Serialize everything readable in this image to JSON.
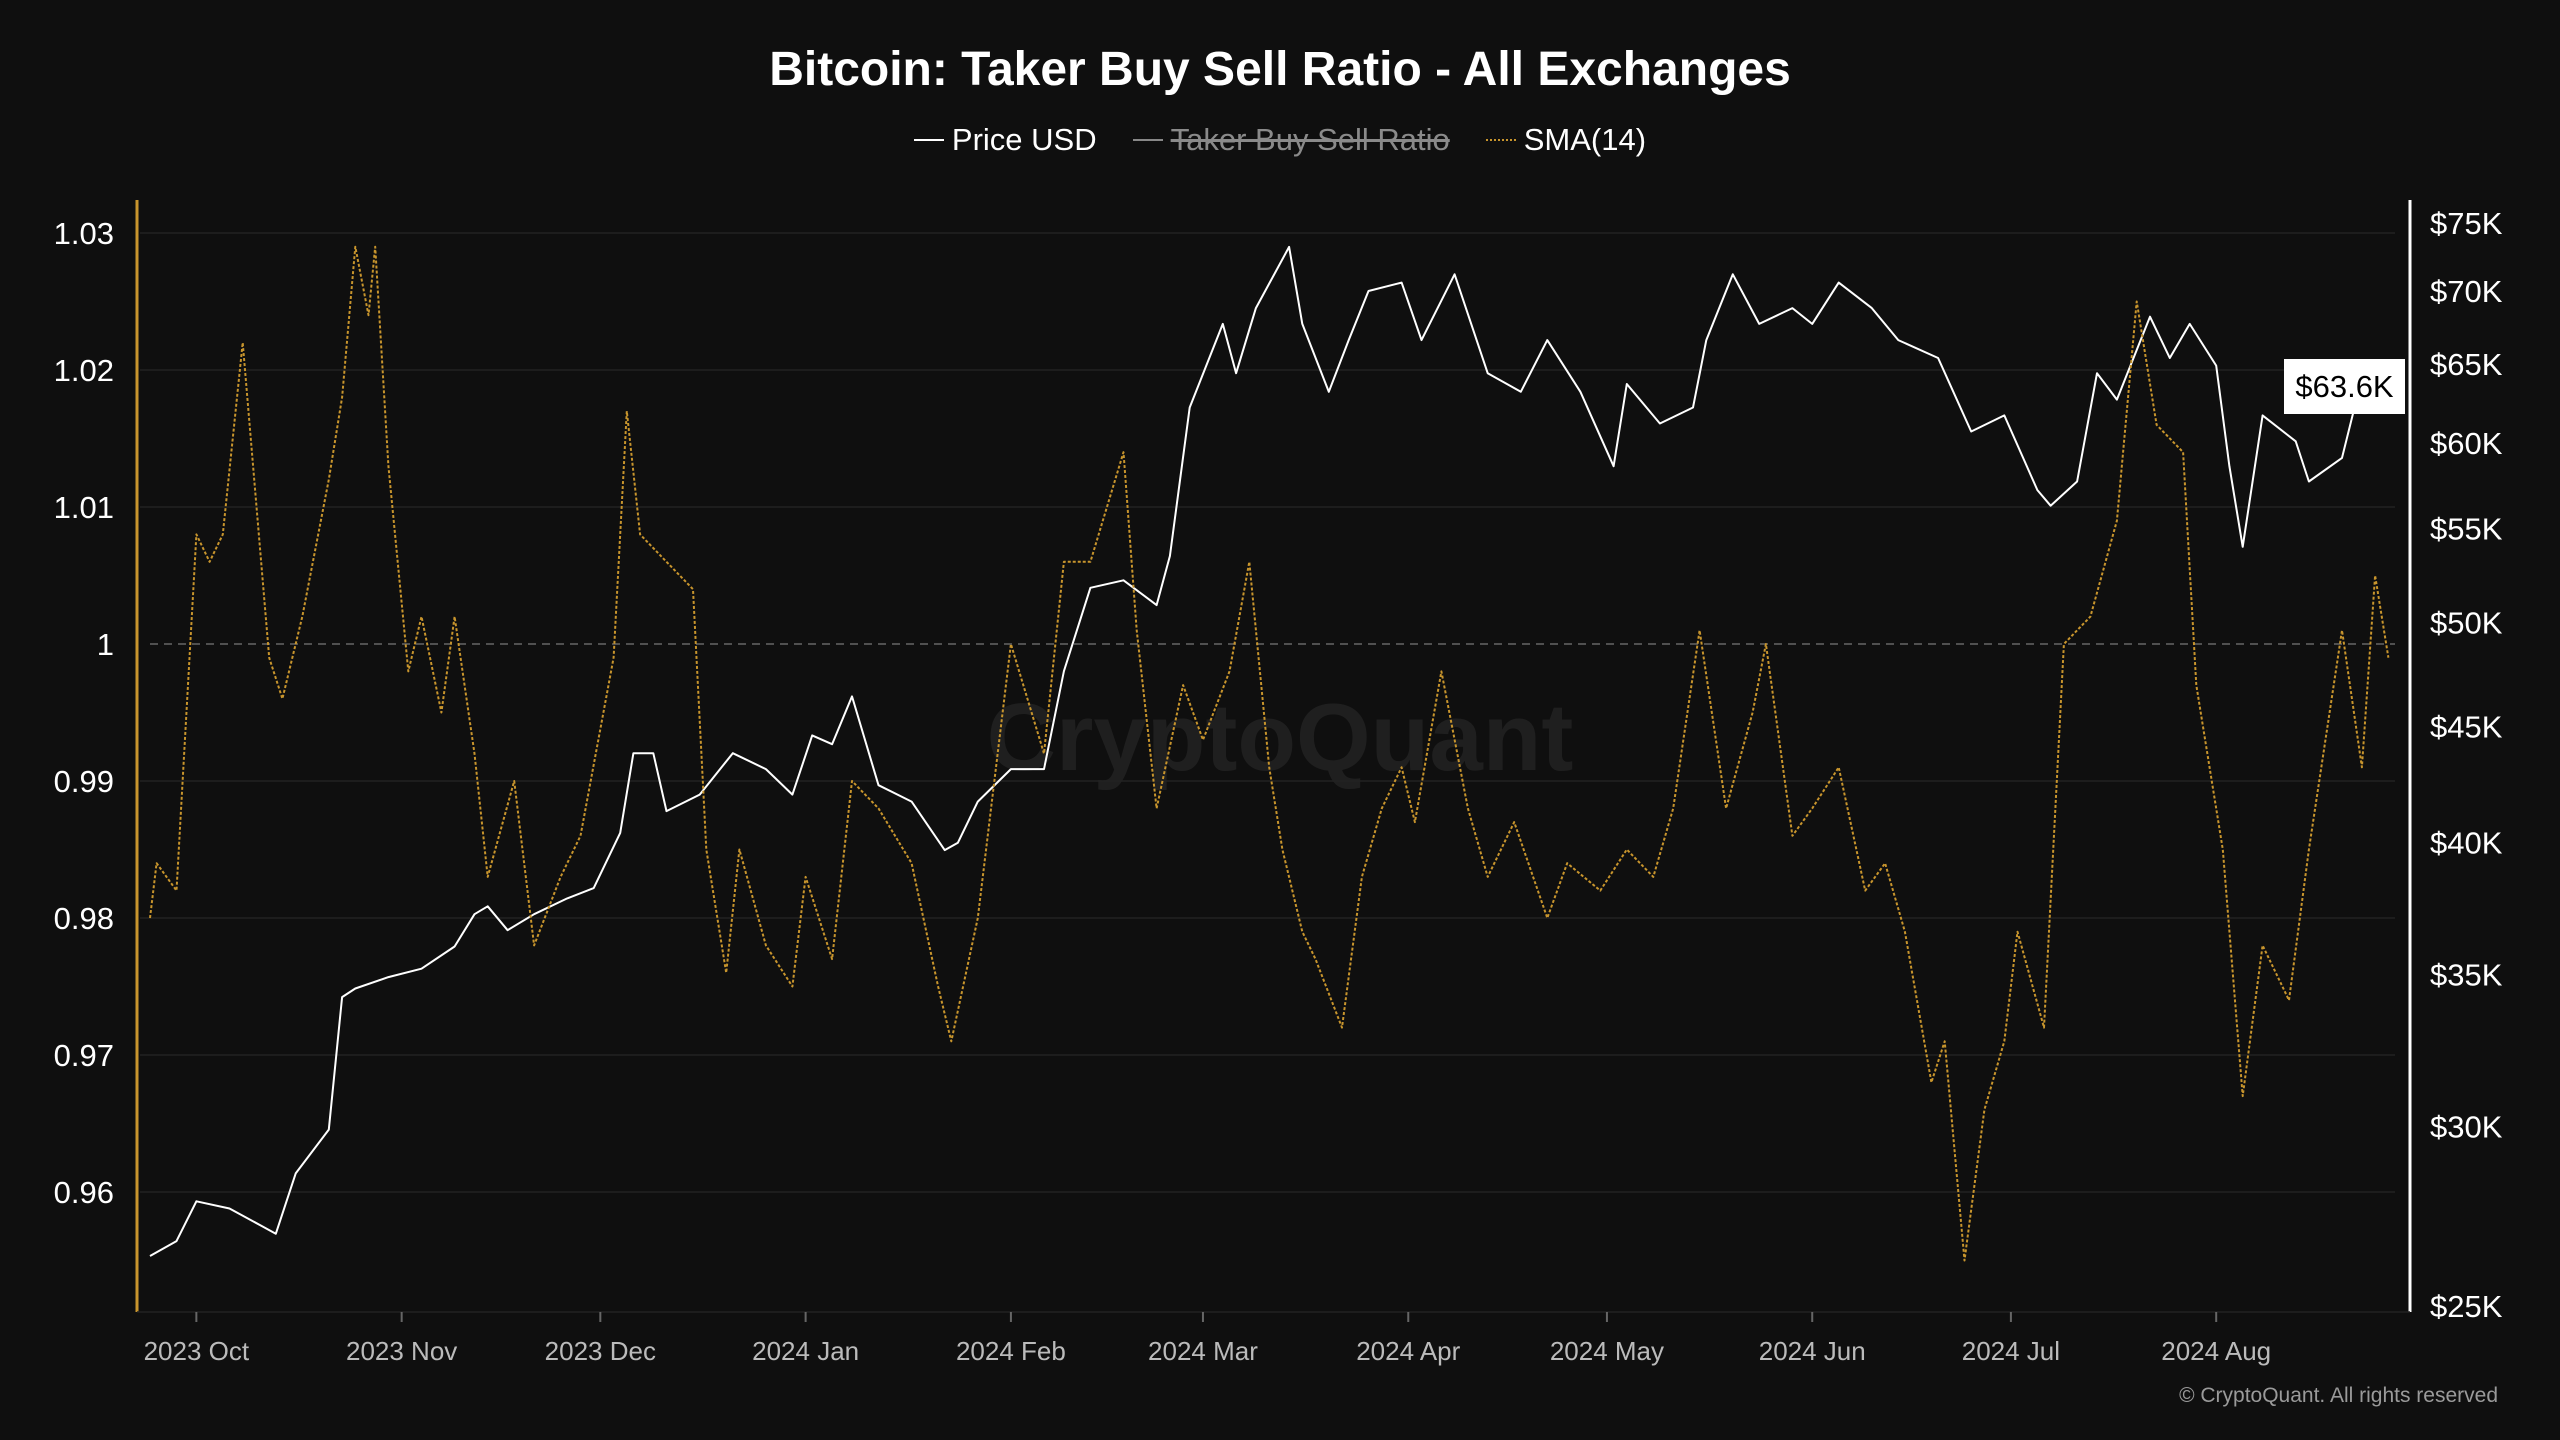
{
  "chart_data": {
    "type": "line",
    "title": "Bitcoin: Taker Buy Sell Ratio - All Exchanges",
    "legend": [
      {
        "name": "Price USD",
        "color": "#ffffff",
        "visible": true
      },
      {
        "name": "Taker Buy Sell Ratio",
        "color": "#888888",
        "visible": false
      },
      {
        "name": "SMA(14)",
        "color": "#c8952d",
        "visible": true
      }
    ],
    "legend_position": "top-center",
    "x_range": [
      "2023-09-24",
      "2024-08-28"
    ],
    "x_ticks": [
      {
        "date": "2023-10-01",
        "label": "2023 Oct"
      },
      {
        "date": "2023-11-01",
        "label": "2023 Nov"
      },
      {
        "date": "2023-12-01",
        "label": "2023 Dec"
      },
      {
        "date": "2024-01-01",
        "label": "2024 Jan"
      },
      {
        "date": "2024-02-01",
        "label": "2024 Feb"
      },
      {
        "date": "2024-03-01",
        "label": "2024 Mar"
      },
      {
        "date": "2024-04-01",
        "label": "2024 Apr"
      },
      {
        "date": "2024-05-01",
        "label": "2024 May"
      },
      {
        "date": "2024-06-01",
        "label": "2024 Jun"
      },
      {
        "date": "2024-07-01",
        "label": "2024 Jul"
      },
      {
        "date": "2024-08-01",
        "label": "2024 Aug"
      }
    ],
    "y_left": {
      "range": [
        0.955,
        1.03
      ],
      "ticks": [
        1.03,
        1.02,
        1.01,
        1,
        0.99,
        0.98,
        0.97,
        0.96
      ],
      "tick_labels": [
        "1.03",
        "1.02",
        "1.01",
        "1",
        "0.99",
        "0.98",
        "0.97",
        "0.96"
      ],
      "reference_line": 1,
      "grid": true
    },
    "y_right": {
      "scale": "log",
      "range": [
        25000,
        75000
      ],
      "ticks": [
        75000,
        70000,
        65000,
        60000,
        55000,
        50000,
        45000,
        40000,
        35000,
        30000,
        25000
      ],
      "tick_labels": [
        "$75K",
        "$70K",
        "$65K",
        "$60K",
        "$55K",
        "$50K",
        "$45K",
        "$40K",
        "$35K",
        "$30K",
        "$25K"
      ]
    },
    "last_price_label": "$63.6K",
    "series": [
      {
        "name": "Price USD",
        "axis": "right",
        "points": [
          [
            "2023-09-24",
            26300
          ],
          [
            "2023-09-28",
            26700
          ],
          [
            "2023-10-01",
            27800
          ],
          [
            "2023-10-06",
            27600
          ],
          [
            "2023-10-11",
            27100
          ],
          [
            "2023-10-13",
            26900
          ],
          [
            "2023-10-16",
            28600
          ],
          [
            "2023-10-21",
            29900
          ],
          [
            "2023-10-23",
            34200
          ],
          [
            "2023-10-25",
            34500
          ],
          [
            "2023-10-30",
            34900
          ],
          [
            "2023-11-04",
            35200
          ],
          [
            "2023-11-09",
            36000
          ],
          [
            "2023-11-12",
            37200
          ],
          [
            "2023-11-14",
            37500
          ],
          [
            "2023-11-17",
            36600
          ],
          [
            "2023-11-21",
            37200
          ],
          [
            "2023-11-26",
            37800
          ],
          [
            "2023-11-30",
            38200
          ],
          [
            "2023-12-04",
            40400
          ],
          [
            "2023-12-06",
            43800
          ],
          [
            "2023-12-09",
            43800
          ],
          [
            "2023-12-11",
            41300
          ],
          [
            "2023-12-16",
            42000
          ],
          [
            "2023-12-21",
            43800
          ],
          [
            "2023-12-26",
            43100
          ],
          [
            "2023-12-30",
            42000
          ],
          [
            "2024-01-02",
            44600
          ],
          [
            "2024-01-05",
            44200
          ],
          [
            "2024-01-08",
            46400
          ],
          [
            "2024-01-12",
            42400
          ],
          [
            "2024-01-17",
            41700
          ],
          [
            "2024-01-22",
            39700
          ],
          [
            "2024-01-24",
            40000
          ],
          [
            "2024-01-27",
            41700
          ],
          [
            "2024-02-01",
            43100
          ],
          [
            "2024-02-06",
            43100
          ],
          [
            "2024-02-09",
            47600
          ],
          [
            "2024-02-13",
            51800
          ],
          [
            "2024-02-18",
            52200
          ],
          [
            "2024-02-23",
            50900
          ],
          [
            "2024-02-25",
            53500
          ],
          [
            "2024-02-28",
            62200
          ],
          [
            "2024-03-04",
            67700
          ],
          [
            "2024-03-06",
            64400
          ],
          [
            "2024-03-09",
            68800
          ],
          [
            "2024-03-14",
            73200
          ],
          [
            "2024-03-16",
            67700
          ],
          [
            "2024-03-20",
            63200
          ],
          [
            "2024-03-23",
            66600
          ],
          [
            "2024-03-26",
            70000
          ],
          [
            "2024-03-31",
            70600
          ],
          [
            "2024-04-03",
            66600
          ],
          [
            "2024-04-08",
            71200
          ],
          [
            "2024-04-13",
            64400
          ],
          [
            "2024-04-18",
            63200
          ],
          [
            "2024-04-22",
            66600
          ],
          [
            "2024-04-27",
            63200
          ],
          [
            "2024-05-02",
            58600
          ],
          [
            "2024-05-04",
            63700
          ],
          [
            "2024-05-09",
            61200
          ],
          [
            "2024-05-14",
            62200
          ],
          [
            "2024-05-16",
            66600
          ],
          [
            "2024-05-20",
            71200
          ],
          [
            "2024-05-24",
            67700
          ],
          [
            "2024-05-29",
            68800
          ],
          [
            "2024-06-01",
            67700
          ],
          [
            "2024-06-05",
            70600
          ],
          [
            "2024-06-10",
            68800
          ],
          [
            "2024-06-14",
            66600
          ],
          [
            "2024-06-20",
            65400
          ],
          [
            "2024-06-25",
            60700
          ],
          [
            "2024-06-30",
            61700
          ],
          [
            "2024-07-05",
            57200
          ],
          [
            "2024-07-07",
            56300
          ],
          [
            "2024-07-11",
            57700
          ],
          [
            "2024-07-14",
            64400
          ],
          [
            "2024-07-17",
            62700
          ],
          [
            "2024-07-22",
            68200
          ],
          [
            "2024-07-25",
            65400
          ],
          [
            "2024-07-28",
            67700
          ],
          [
            "2024-08-01",
            64900
          ],
          [
            "2024-08-03",
            58600
          ],
          [
            "2024-08-05",
            54000
          ],
          [
            "2024-08-08",
            61700
          ],
          [
            "2024-08-13",
            60100
          ],
          [
            "2024-08-15",
            57700
          ],
          [
            "2024-08-20",
            59100
          ],
          [
            "2024-08-23",
            64100
          ],
          [
            "2024-08-26",
            63600
          ]
        ]
      },
      {
        "name": "SMA(14)",
        "axis": "left",
        "points": [
          [
            "2023-09-24",
            0.98
          ],
          [
            "2023-09-25",
            0.984
          ],
          [
            "2023-09-28",
            0.982
          ],
          [
            "2023-10-01",
            1.008
          ],
          [
            "2023-10-03",
            1.006
          ],
          [
            "2023-10-05",
            1.008
          ],
          [
            "2023-10-08",
            1.022
          ],
          [
            "2023-10-12",
            0.999
          ],
          [
            "2023-10-14",
            0.996
          ],
          [
            "2023-10-17",
            1.002
          ],
          [
            "2023-10-21",
            1.012
          ],
          [
            "2023-10-23",
            1.018
          ],
          [
            "2023-10-25",
            1.029
          ],
          [
            "2023-10-27",
            1.024
          ],
          [
            "2023-10-28",
            1.029
          ],
          [
            "2023-10-30",
            1.013
          ],
          [
            "2023-11-02",
            0.998
          ],
          [
            "2023-11-04",
            1.002
          ],
          [
            "2023-11-07",
            0.995
          ],
          [
            "2023-11-09",
            1.002
          ],
          [
            "2023-11-12",
            0.992
          ],
          [
            "2023-11-14",
            0.983
          ],
          [
            "2023-11-18",
            0.99
          ],
          [
            "2023-11-21",
            0.978
          ],
          [
            "2023-11-25",
            0.983
          ],
          [
            "2023-11-28",
            0.986
          ],
          [
            "2023-12-03",
            0.999
          ],
          [
            "2023-12-05",
            1.017
          ],
          [
            "2023-12-07",
            1.008
          ],
          [
            "2023-12-11",
            1.006
          ],
          [
            "2023-12-15",
            1.004
          ],
          [
            "2023-12-17",
            0.985
          ],
          [
            "2023-12-20",
            0.976
          ],
          [
            "2023-12-22",
            0.985
          ],
          [
            "2023-12-26",
            0.978
          ],
          [
            "2023-12-30",
            0.975
          ],
          [
            "2024-01-01",
            0.983
          ],
          [
            "2024-01-05",
            0.977
          ],
          [
            "2024-01-08",
            0.99
          ],
          [
            "2024-01-12",
            0.988
          ],
          [
            "2024-01-17",
            0.984
          ],
          [
            "2024-01-21",
            0.975
          ],
          [
            "2024-01-23",
            0.971
          ],
          [
            "2024-01-27",
            0.98
          ],
          [
            "2024-02-01",
            1.0
          ],
          [
            "2024-02-06",
            0.992
          ],
          [
            "2024-02-09",
            1.006
          ],
          [
            "2024-02-13",
            1.006
          ],
          [
            "2024-02-18",
            1.014
          ],
          [
            "2024-02-20",
            1.001
          ],
          [
            "2024-02-23",
            0.988
          ],
          [
            "2024-02-27",
            0.997
          ],
          [
            "2024-03-01",
            0.993
          ],
          [
            "2024-03-05",
            0.998
          ],
          [
            "2024-03-08",
            1.006
          ],
          [
            "2024-03-11",
            0.991
          ],
          [
            "2024-03-13",
            0.985
          ],
          [
            "2024-03-16",
            0.979
          ],
          [
            "2024-03-18",
            0.977
          ],
          [
            "2024-03-22",
            0.972
          ],
          [
            "2024-03-25",
            0.983
          ],
          [
            "2024-03-28",
            0.988
          ],
          [
            "2024-03-31",
            0.991
          ],
          [
            "2024-04-02",
            0.987
          ],
          [
            "2024-04-06",
            0.998
          ],
          [
            "2024-04-10",
            0.988
          ],
          [
            "2024-04-13",
            0.983
          ],
          [
            "2024-04-17",
            0.987
          ],
          [
            "2024-04-22",
            0.98
          ],
          [
            "2024-04-25",
            0.984
          ],
          [
            "2024-04-30",
            0.982
          ],
          [
            "2024-05-04",
            0.985
          ],
          [
            "2024-05-08",
            0.983
          ],
          [
            "2024-05-11",
            0.988
          ],
          [
            "2024-05-15",
            1.001
          ],
          [
            "2024-05-19",
            0.988
          ],
          [
            "2024-05-23",
            0.995
          ],
          [
            "2024-05-25",
            1.0
          ],
          [
            "2024-05-29",
            0.986
          ],
          [
            "2024-06-01",
            0.988
          ],
          [
            "2024-06-05",
            0.991
          ],
          [
            "2024-06-09",
            0.982
          ],
          [
            "2024-06-12",
            0.984
          ],
          [
            "2024-06-15",
            0.979
          ],
          [
            "2024-06-19",
            0.968
          ],
          [
            "2024-06-21",
            0.971
          ],
          [
            "2024-06-24",
            0.955
          ],
          [
            "2024-06-27",
            0.966
          ],
          [
            "2024-06-30",
            0.971
          ],
          [
            "2024-07-02",
            0.979
          ],
          [
            "2024-07-06",
            0.972
          ],
          [
            "2024-07-09",
            1.0
          ],
          [
            "2024-07-13",
            1.002
          ],
          [
            "2024-07-17",
            1.009
          ],
          [
            "2024-07-20",
            1.025
          ],
          [
            "2024-07-23",
            1.016
          ],
          [
            "2024-07-27",
            1.014
          ],
          [
            "2024-07-29",
            0.997
          ],
          [
            "2024-08-02",
            0.985
          ],
          [
            "2024-08-05",
            0.967
          ],
          [
            "2024-08-08",
            0.978
          ],
          [
            "2024-08-12",
            0.974
          ],
          [
            "2024-08-15",
            0.985
          ],
          [
            "2024-08-20",
            1.001
          ],
          [
            "2024-08-23",
            0.991
          ],
          [
            "2024-08-25",
            1.005
          ],
          [
            "2024-08-27",
            0.999
          ]
        ]
      }
    ]
  },
  "watermark": "CryptoQuant",
  "copyright": "© CryptoQuant. All rights reserved"
}
